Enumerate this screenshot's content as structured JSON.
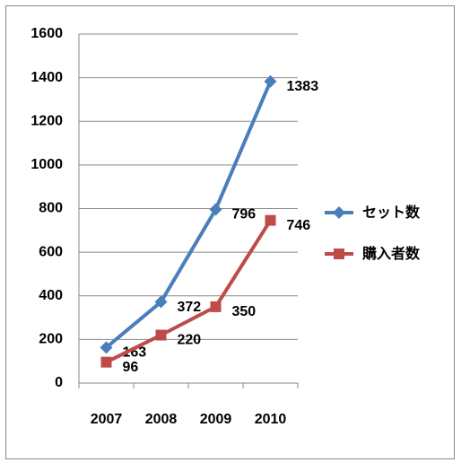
{
  "chart_data": {
    "type": "line",
    "categories": [
      "2007",
      "2008",
      "2009",
      "2010"
    ],
    "series": [
      {
        "name": "セット数",
        "color": "#4a7ebb",
        "marker": "diamond",
        "values": [
          163,
          372,
          796,
          1383
        ]
      },
      {
        "name": "購入者数",
        "color": "#be4b48",
        "marker": "square",
        "values": [
          96,
          220,
          350,
          746
        ]
      }
    ],
    "ylim": [
      0,
      1600
    ],
    "yticks": [
      0,
      200,
      400,
      600,
      800,
      1000,
      1200,
      1400,
      1600
    ],
    "grid": true,
    "legend": "right"
  }
}
